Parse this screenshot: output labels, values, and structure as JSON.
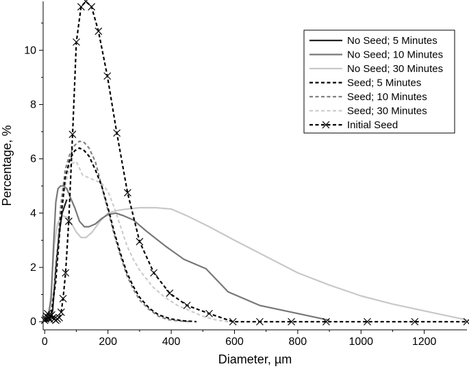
{
  "chart_data": {
    "type": "line",
    "title": "",
    "xlabel": "Diameter, µm",
    "ylabel": "Percentage, %",
    "xlim": [
      -5,
      1335
    ],
    "ylim": [
      -0.3,
      11.8
    ],
    "xticks": [
      0,
      200,
      400,
      600,
      800,
      1000,
      1200
    ],
    "yticks": [
      0,
      2,
      4,
      6,
      8,
      10
    ],
    "grid": false,
    "legend_position": "top-right",
    "series": [
      {
        "name": "No Seed; 5 Minutes",
        "color": "#222222",
        "dash": "solid",
        "markers": false,
        "x": [
          0,
          15,
          25,
          35,
          45,
          55,
          70
        ],
        "y": [
          0,
          0.05,
          0.4,
          2.0,
          3.2,
          4.0,
          4.5
        ]
      },
      {
        "name": "No Seed; 10 Minutes",
        "color": "#777777",
        "dash": "solid",
        "markers": false,
        "x": [
          0,
          10,
          20,
          28,
          35,
          42,
          50,
          60,
          70,
          80,
          95,
          110,
          125,
          140,
          160,
          180,
          200,
          225,
          250,
          280,
          320,
          380,
          440,
          510,
          580,
          680,
          800,
          900
        ],
        "y": [
          0,
          0.1,
          0.8,
          2.8,
          4.4,
          4.9,
          5.0,
          5.0,
          4.9,
          4.6,
          4.2,
          3.7,
          3.5,
          3.5,
          3.6,
          3.8,
          3.95,
          4.0,
          3.9,
          3.75,
          3.35,
          2.8,
          2.3,
          1.95,
          1.1,
          0.6,
          0.3,
          0.05
        ]
      },
      {
        "name": "No Seed; 30 Minutes",
        "color": "#c8c8c8",
        "dash": "solid",
        "markers": false,
        "x": [
          0,
          10,
          20,
          30,
          40,
          55,
          70,
          85,
          100,
          115,
          130,
          150,
          175,
          200,
          230,
          260,
          300,
          350,
          400,
          450,
          520,
          600,
          700,
          800,
          900,
          1000,
          1100,
          1200,
          1300,
          1340
        ],
        "y": [
          0,
          0.1,
          1.0,
          2.8,
          3.6,
          3.9,
          3.85,
          3.6,
          3.3,
          3.1,
          3.1,
          3.3,
          3.7,
          4.0,
          4.1,
          4.15,
          4.2,
          4.2,
          4.15,
          3.9,
          3.5,
          3.0,
          2.4,
          1.8,
          1.35,
          0.95,
          0.65,
          0.4,
          0.15,
          0.05
        ]
      },
      {
        "name": "Seed; 5 Minutes",
        "color": "#000000",
        "dash": "dotted",
        "markers": false,
        "x": [
          0,
          20,
          35,
          50,
          65,
          80,
          95,
          110,
          125,
          140,
          160,
          180,
          200,
          220,
          240,
          260,
          280,
          300,
          330,
          360,
          400,
          440,
          470,
          480
        ],
        "y": [
          0,
          0.2,
          1.5,
          3.7,
          5.3,
          6.0,
          6.3,
          6.4,
          6.3,
          6.1,
          5.6,
          5.0,
          4.2,
          3.3,
          2.5,
          1.8,
          1.3,
          0.9,
          0.5,
          0.25,
          0.1,
          0.03,
          0.01,
          0
        ]
      },
      {
        "name": "Seed; 10 Minutes",
        "color": "#808080",
        "dash": "dotted",
        "markers": false,
        "x": [
          0,
          20,
          35,
          50,
          65,
          80,
          95,
          110,
          125,
          140,
          160,
          180,
          200,
          220,
          240,
          260,
          280,
          300,
          330,
          360,
          390,
          420,
          450,
          460
        ],
        "y": [
          0,
          0.2,
          1.8,
          4.2,
          5.6,
          6.2,
          6.5,
          6.65,
          6.6,
          6.4,
          5.9,
          5.0,
          4.1,
          3.2,
          2.4,
          1.7,
          1.2,
          0.8,
          0.45,
          0.2,
          0.08,
          0.03,
          0.01,
          0
        ]
      },
      {
        "name": "Seed; 30 Minutes",
        "color": "#cccccc",
        "dash": "dotted",
        "markers": false,
        "x": [
          0,
          20,
          35,
          50,
          65,
          80,
          100,
          120,
          140,
          160,
          180,
          200,
          220,
          240,
          260,
          280,
          300,
          340,
          380,
          420,
          460,
          500,
          540,
          580
        ],
        "y": [
          0,
          0.2,
          1.5,
          3.8,
          5.0,
          5.8,
          5.9,
          5.4,
          5.3,
          5.2,
          5.1,
          4.8,
          4.2,
          3.5,
          2.8,
          2.3,
          1.9,
          1.3,
          0.9,
          0.6,
          0.4,
          0.2,
          0.07,
          0
        ]
      },
      {
        "name": "Initial Seed",
        "color": "#000000",
        "dash": "dotted",
        "markers": true,
        "x": [
          0,
          3,
          6,
          9,
          12,
          15,
          18,
          22,
          26,
          30,
          35,
          40,
          46,
          52,
          58,
          66,
          76,
          88,
          100,
          115,
          130,
          148,
          170,
          198,
          228,
          262,
          300,
          345,
          395,
          450,
          520,
          595,
          680,
          780,
          890,
          1020,
          1170,
          1335
        ],
        "y": [
          0.05,
          0.1,
          0.2,
          0.3,
          0.15,
          0.1,
          0.2,
          0.25,
          0.15,
          0.1,
          0.05,
          0.1,
          0.15,
          0.35,
          0.85,
          1.8,
          3.7,
          6.9,
          10.3,
          11.6,
          11.8,
          11.6,
          10.7,
          9.05,
          6.95,
          4.75,
          2.95,
          1.8,
          1.05,
          0.6,
          0.3,
          0,
          0,
          0,
          0,
          0,
          0,
          0
        ]
      }
    ]
  }
}
